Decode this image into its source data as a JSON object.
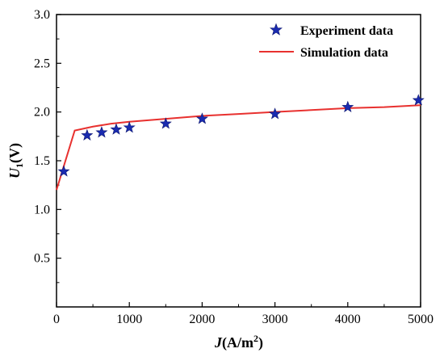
{
  "chart_data": {
    "type": "scatter",
    "title": "",
    "xlabel": {
      "main": "J",
      "unit": "(A/m",
      "sup": "2",
      "close": ")"
    },
    "ylabel": {
      "main": "U",
      "sub": "1",
      "unit": "(V)"
    },
    "xlim": [
      0,
      5000
    ],
    "ylim": [
      0.0,
      3.0
    ],
    "xticks": [
      "0",
      "1000",
      "2000",
      "3000",
      "4000",
      "5000"
    ],
    "yticks": [
      "0.5",
      "1.0",
      "1.5",
      "2.0",
      "2.5",
      "3.0"
    ],
    "legend_position": "top-right",
    "grid": false,
    "series": [
      {
        "name": "Experiment data",
        "kind": "scatter",
        "marker": "star",
        "color": "#1a2bb0",
        "x": [
          100,
          420,
          620,
          820,
          1000,
          1500,
          2000,
          3000,
          4000,
          4970
        ],
        "y": [
          1.39,
          1.76,
          1.79,
          1.82,
          1.84,
          1.88,
          1.93,
          1.98,
          2.05,
          2.12
        ]
      },
      {
        "name": "Simulation data",
        "kind": "line",
        "color": "#e8312f",
        "x": [
          0,
          250,
          500,
          750,
          1000,
          1500,
          2000,
          2500,
          3000,
          3500,
          4000,
          4500,
          5000
        ],
        "y": [
          1.2,
          1.81,
          1.85,
          1.88,
          1.9,
          1.93,
          1.96,
          1.98,
          2.0,
          2.02,
          2.04,
          2.05,
          2.07
        ]
      }
    ]
  }
}
